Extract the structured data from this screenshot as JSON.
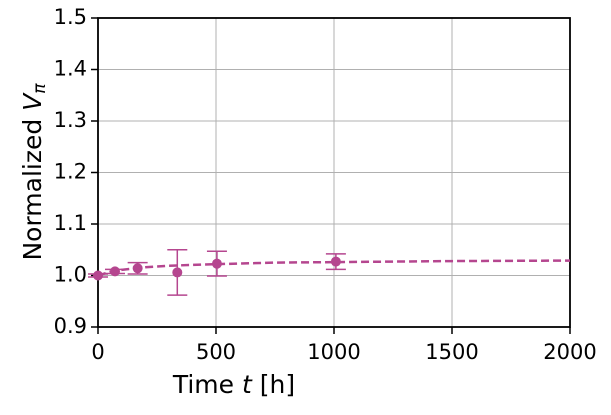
{
  "chart_data": {
    "type": "line",
    "xlabel": {
      "text": "Time ",
      "var": "t",
      "unit": " [h]"
    },
    "ylabel": {
      "text": "Normalized ",
      "var": "V",
      "sub": "π"
    },
    "xlim": [
      0,
      2000
    ],
    "xticks": [
      0,
      500,
      1000,
      1500,
      2000
    ],
    "ylim": [
      0.9,
      1.5
    ],
    "yticks": [
      0.9,
      {
        "value": 1.0,
        "label": "1.0"
      },
      1.1,
      1.2,
      1.3,
      1.4,
      1.5
    ],
    "grid": true,
    "series": [
      {
        "color": "#b5468f",
        "style": "markers",
        "x": [
          0,
          72,
          168,
          336,
          504,
          1008
        ],
        "values": [
          1.0,
          1.008,
          1.014,
          1.006,
          1.023,
          1.027
        ],
        "errors": [
          0.003,
          0.004,
          0.011,
          0.044,
          0.024,
          0.015
        ]
      },
      {
        "color": "#b5468f",
        "style": "dashed",
        "x": [
          0,
          50,
          100,
          200,
          300,
          500,
          750,
          1000,
          1500,
          2000
        ],
        "values": [
          1.0,
          1.007,
          1.011,
          1.016,
          1.019,
          1.022,
          1.025,
          1.026,
          1.028,
          1.029
        ]
      }
    ]
  }
}
